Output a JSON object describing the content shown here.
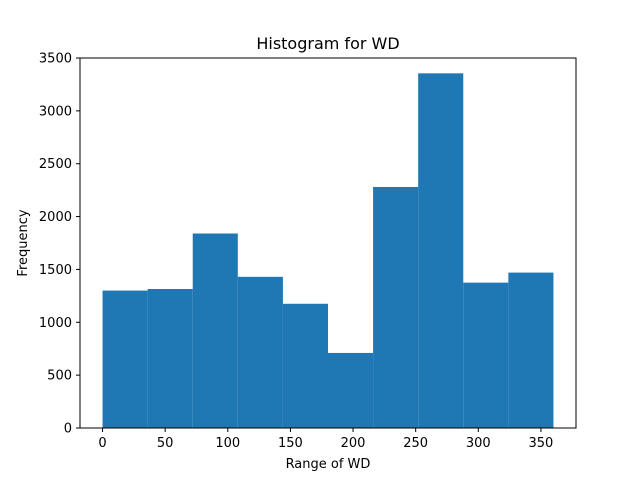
{
  "chart_data": {
    "type": "bar",
    "title": "Histogram for WD",
    "xlabel": "Range of WD",
    "ylabel": "Frequency",
    "bin_edges": [
      0,
      36,
      72,
      108,
      144,
      180,
      216,
      252,
      288,
      324,
      360
    ],
    "values": [
      1300,
      1315,
      1840,
      1430,
      1175,
      710,
      2280,
      3355,
      1375,
      1470
    ],
    "xlim": [
      -18,
      378
    ],
    "ylim": [
      0,
      3500
    ],
    "xticks": [
      0,
      50,
      100,
      150,
      200,
      250,
      300,
      350
    ],
    "yticks": [
      0,
      500,
      1000,
      1500,
      2000,
      2500,
      3000,
      3500
    ],
    "bar_color": "#1f77b4",
    "grid": false
  }
}
